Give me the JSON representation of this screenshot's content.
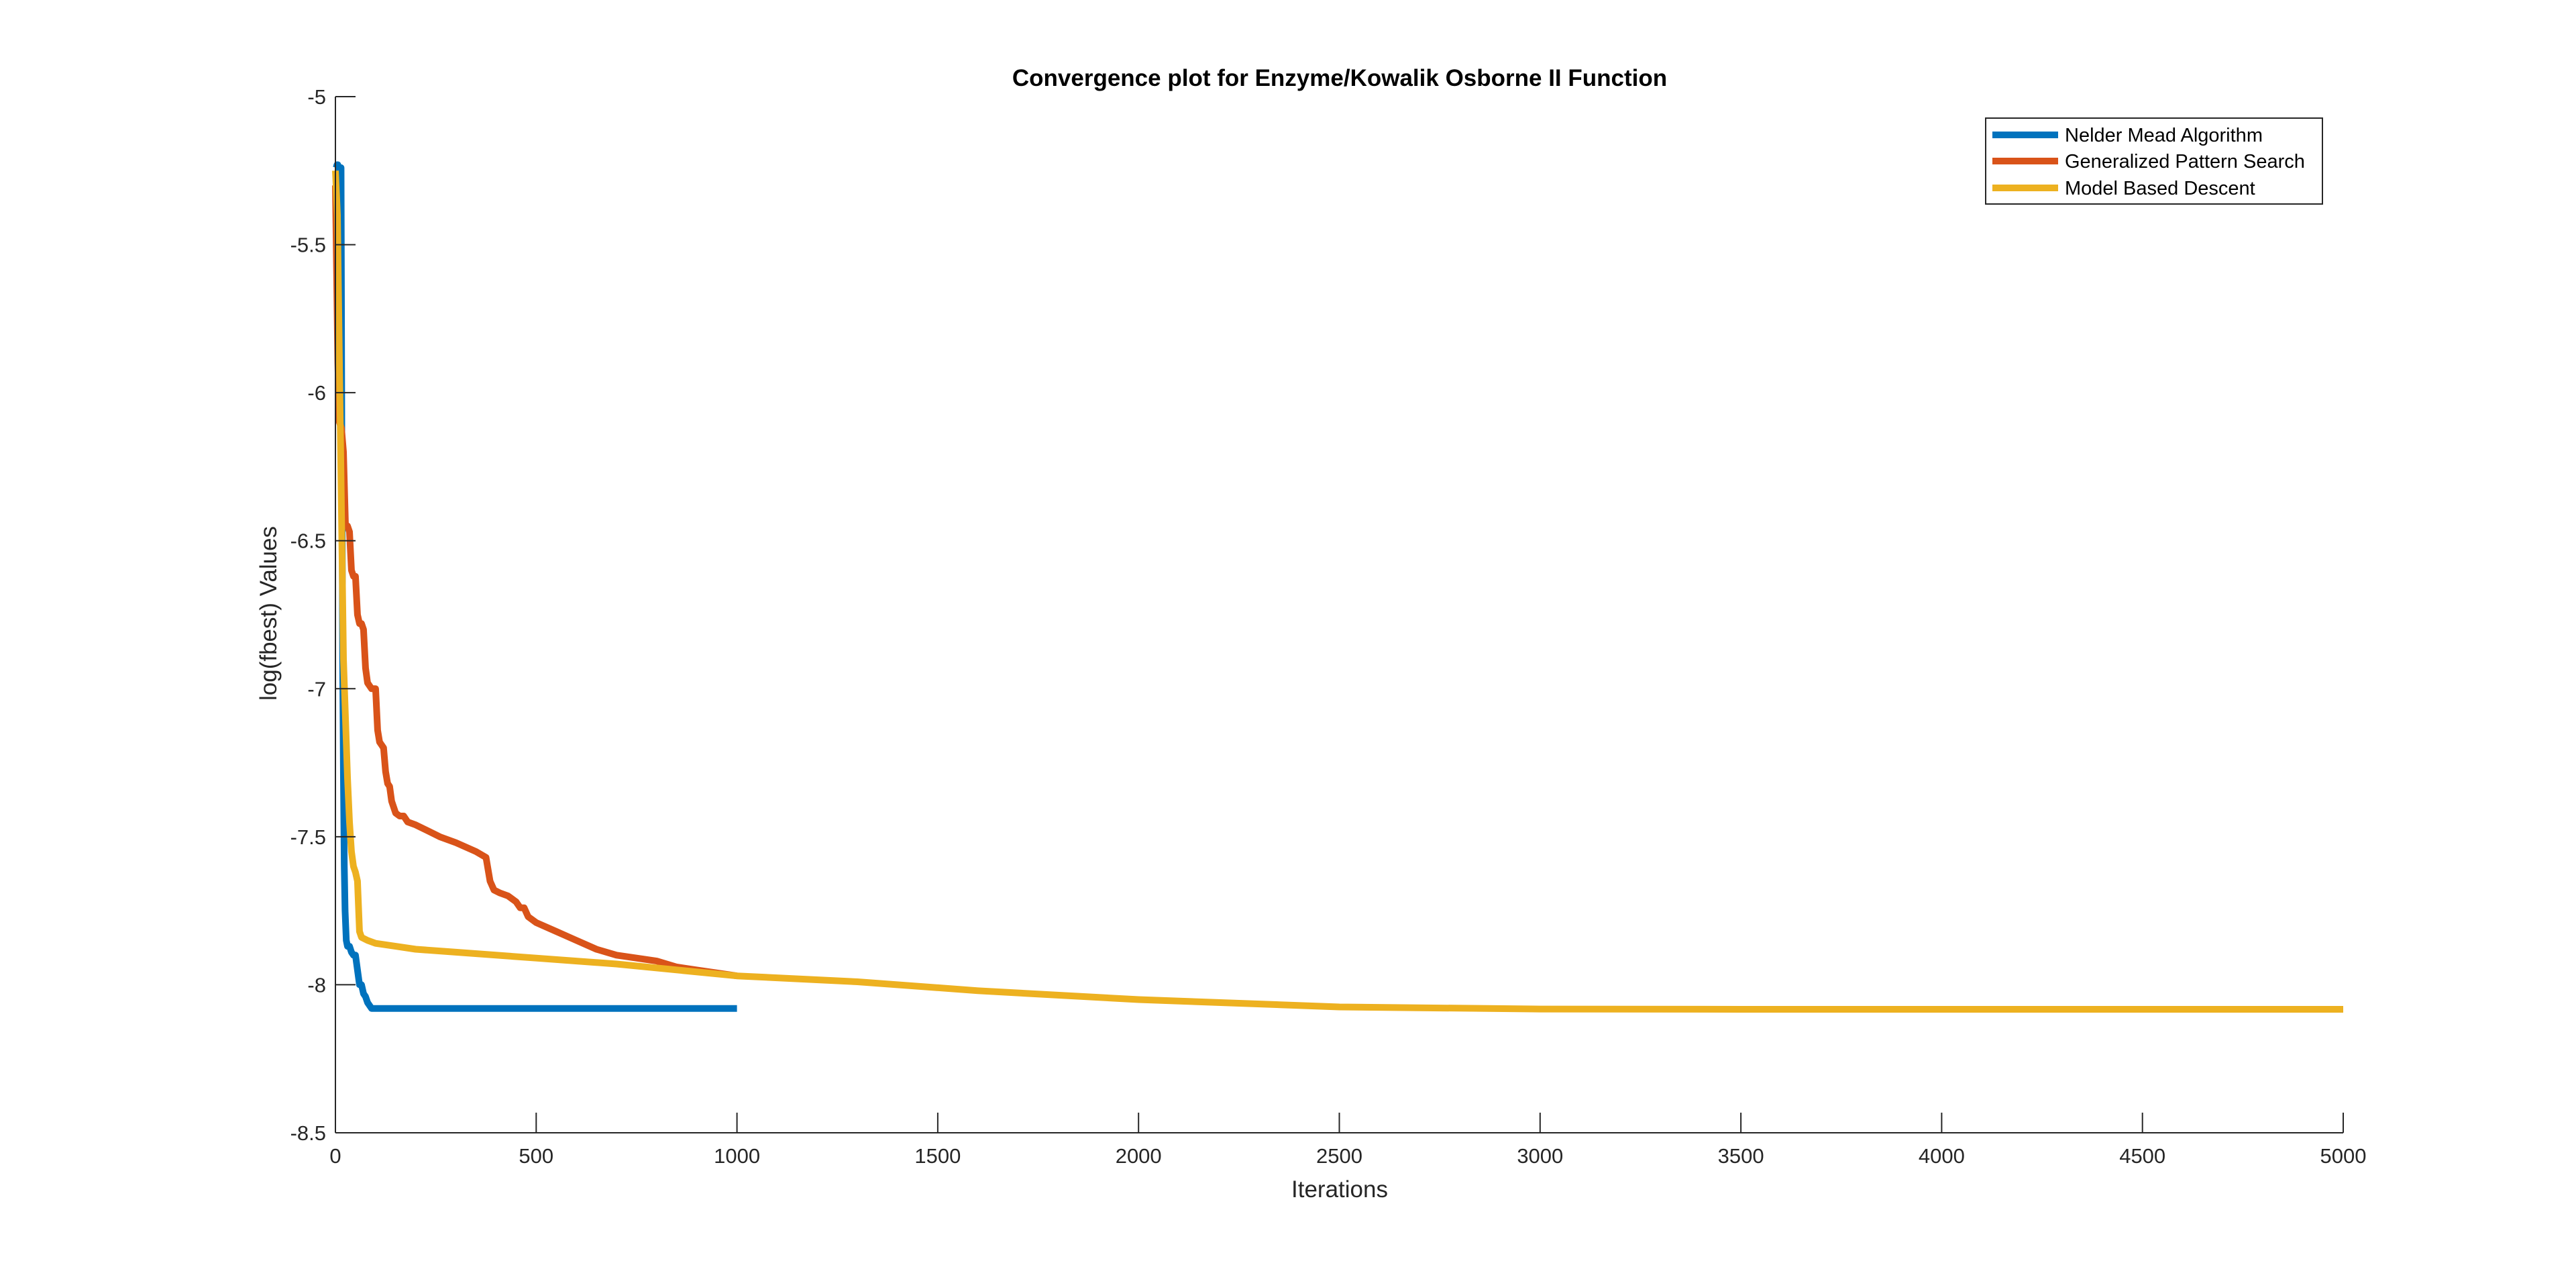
{
  "chart_data": {
    "type": "line",
    "title": "Convergence plot for Enzyme/Kowalik Osborne II Function",
    "xlabel": "Iterations",
    "ylabel": "log(fbest) Values",
    "xlim": [
      0,
      5000
    ],
    "ylim": [
      -8.5,
      -5
    ],
    "xticks": [
      0,
      500,
      1000,
      1500,
      2000,
      2500,
      3000,
      3500,
      4000,
      4500,
      5000
    ],
    "yticks": [
      -5,
      -5.5,
      -6,
      -6.5,
      -7,
      -7.5,
      -8,
      -8.5
    ],
    "grid": false,
    "legend_position": "top-right",
    "series": [
      {
        "name": "Nelder Mead Algorithm",
        "color": "#0072BD",
        "x": [
          0,
          2,
          4,
          6,
          8,
          10,
          12,
          14,
          16,
          18,
          20,
          22,
          24,
          27,
          30,
          35,
          40,
          45,
          50,
          55,
          60,
          65,
          70,
          75,
          80,
          85,
          90,
          100,
          120,
          200,
          500,
          1000
        ],
        "y": [
          -5.24,
          -5.24,
          -5.23,
          -5.23,
          -5.24,
          -5.24,
          -5.24,
          -5.24,
          -6.2,
          -6.9,
          -7.3,
          -7.6,
          -7.75,
          -7.85,
          -7.87,
          -7.87,
          -7.89,
          -7.9,
          -7.9,
          -7.95,
          -8.0,
          -8.0,
          -8.03,
          -8.04,
          -8.06,
          -8.07,
          -8.08,
          -8.08,
          -8.08,
          -8.08,
          -8.08,
          -8.08
        ]
      },
      {
        "name": "Generalized Pattern Search",
        "color": "#D95319",
        "x": [
          0,
          3,
          6,
          10,
          15,
          20,
          25,
          30,
          35,
          40,
          45,
          50,
          55,
          60,
          65,
          70,
          75,
          80,
          90,
          100,
          105,
          110,
          115,
          120,
          125,
          130,
          135,
          140,
          150,
          160,
          170,
          180,
          200,
          230,
          260,
          300,
          350,
          375,
          385,
          395,
          410,
          430,
          450,
          460,
          470,
          480,
          500,
          550,
          600,
          650,
          700,
          750,
          800,
          850,
          900,
          950,
          1000
        ],
        "y": [
          -5.3,
          -5.6,
          -5.9,
          -6.1,
          -6.12,
          -6.2,
          -6.45,
          -6.45,
          -6.47,
          -6.6,
          -6.62,
          -6.62,
          -6.75,
          -6.78,
          -6.78,
          -6.8,
          -6.93,
          -6.98,
          -7.0,
          -7.0,
          -7.14,
          -7.18,
          -7.19,
          -7.2,
          -7.28,
          -7.32,
          -7.33,
          -7.38,
          -7.42,
          -7.43,
          -7.43,
          -7.45,
          -7.46,
          -7.48,
          -7.5,
          -7.52,
          -7.55,
          -7.57,
          -7.65,
          -7.68,
          -7.69,
          -7.7,
          -7.72,
          -7.74,
          -7.74,
          -7.77,
          -7.79,
          -7.82,
          -7.85,
          -7.88,
          -7.9,
          -7.91,
          -7.92,
          -7.94,
          -7.95,
          -7.96,
          -7.97
        ]
      },
      {
        "name": "Model Based Descent",
        "color": "#EDB120",
        "x": [
          0,
          5,
          10,
          15,
          20,
          25,
          30,
          35,
          40,
          45,
          50,
          55,
          60,
          65,
          80,
          100,
          150,
          200,
          300,
          500,
          700,
          1000,
          1300,
          1600,
          2000,
          2500,
          3000,
          3500,
          4000,
          4500,
          5000
        ],
        "y": [
          -5.25,
          -5.4,
          -5.9,
          -6.4,
          -6.9,
          -7.1,
          -7.3,
          -7.45,
          -7.55,
          -7.6,
          -7.62,
          -7.65,
          -7.82,
          -7.84,
          -7.85,
          -7.86,
          -7.87,
          -7.88,
          -7.89,
          -7.91,
          -7.93,
          -7.97,
          -7.99,
          -8.02,
          -8.05,
          -8.075,
          -8.082,
          -8.083,
          -8.083,
          -8.083,
          -8.083
        ]
      }
    ]
  }
}
